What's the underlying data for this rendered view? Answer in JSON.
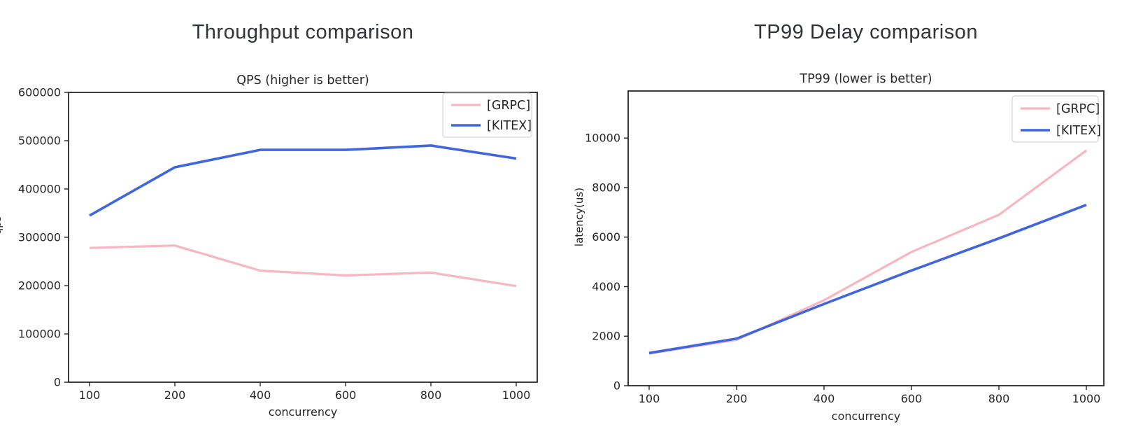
{
  "page": {
    "background_color": "#ffffff"
  },
  "styles": {
    "axis_color": "#262626",
    "title_color": "#303338",
    "legend_border_color": "#d5d5d5",
    "grpc_color": "#F7B6C2",
    "kitex_color": "#4065E0"
  },
  "chart_data": [
    {
      "type": "line",
      "title": "Throughput comparison",
      "axes_title": "QPS (higher is better)",
      "xlabel": "concurrency",
      "ylabel": "qps",
      "ylabel_clipped": true,
      "categories": [
        100,
        200,
        400,
        600,
        800,
        1000
      ],
      "ylim": [
        0,
        600000
      ],
      "yticks": [
        0,
        100000,
        200000,
        300000,
        400000,
        500000,
        600000
      ],
      "grid": false,
      "legend_position": "upper right",
      "legend_entries": [
        "[GRPC]",
        "[KITEX]"
      ],
      "series": [
        {
          "name": "[GRPC]",
          "color": "#F7B6C2",
          "values": [
            278000,
            283000,
            231000,
            221000,
            227000,
            199000
          ]
        },
        {
          "name": "[KITEX]",
          "color": "#4065E0",
          "values": [
            345000,
            445000,
            481000,
            481000,
            490000,
            463000
          ]
        }
      ]
    },
    {
      "type": "line",
      "title": "TP99 Delay comparison",
      "axes_title": "TP99 (lower is better)",
      "xlabel": "concurrency",
      "ylabel": "latency(us)",
      "ylabel_clipped": false,
      "categories": [
        100,
        200,
        400,
        600,
        800,
        1000
      ],
      "ylim": [
        0,
        11900
      ],
      "yticks": [
        0,
        2000,
        4000,
        6000,
        8000,
        10000
      ],
      "grid": false,
      "legend_position": "upper right",
      "legend_entries": [
        "[GRPC]",
        "[KITEX]"
      ],
      "series": [
        {
          "name": "[GRPC]",
          "color": "#F7B6C2",
          "values": [
            1300,
            1850,
            3450,
            5400,
            6900,
            9500
          ]
        },
        {
          "name": "[KITEX]",
          "color": "#4065E0",
          "values": [
            1320,
            1900,
            3300,
            4650,
            5950,
            7300
          ]
        }
      ]
    }
  ]
}
